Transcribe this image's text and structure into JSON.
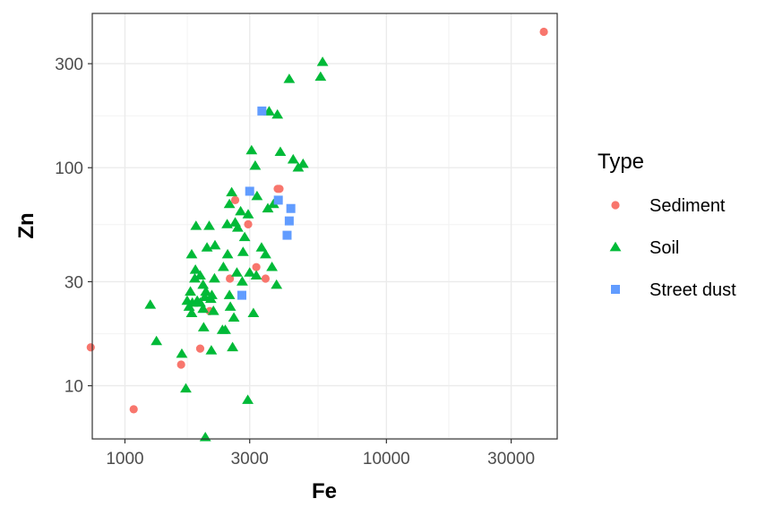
{
  "chart_data": {
    "type": "scatter",
    "xlabel": "Fe",
    "ylabel": "Zn",
    "x_scale": "log",
    "y_scale": "log",
    "xlim": [
      750,
      45000
    ],
    "ylim": [
      5.7,
      510
    ],
    "x_ticks": [
      1000,
      3000,
      10000,
      30000
    ],
    "x_tick_labels": [
      "1000",
      "3000",
      "10000",
      "30000"
    ],
    "y_ticks": [
      10,
      30,
      100,
      300
    ],
    "y_tick_labels": [
      "10",
      "30",
      "100",
      "300"
    ],
    "x_minor_ticks": [
      1732,
      5477,
      17321
    ],
    "y_minor_ticks": [
      5.77,
      17.3,
      54.8,
      173
    ],
    "grid": true,
    "legend": {
      "title": "Type",
      "placement": "right",
      "entries": [
        "Sediment",
        "Soil",
        "Street dust"
      ]
    },
    "colors": {
      "Sediment": "#F8766D",
      "Soil": "#00BA38",
      "Street dust": "#619CFF"
    },
    "series": [
      {
        "name": "Sediment",
        "marker": "circle",
        "points": [
          [
            40000,
            420
          ],
          [
            740,
            15
          ],
          [
            1080,
            7.8
          ],
          [
            1640,
            12.5
          ],
          [
            1940,
            14.8
          ],
          [
            2110,
            22
          ],
          [
            2520,
            31
          ],
          [
            2640,
            71
          ],
          [
            2960,
            55
          ],
          [
            3180,
            35
          ],
          [
            3450,
            31
          ],
          [
            3840,
            80
          ],
          [
            3900,
            80
          ]
        ]
      },
      {
        "name": "Soil",
        "marker": "triangle",
        "points": [
          [
            5700,
            305
          ],
          [
            5600,
            261
          ],
          [
            4250,
            255
          ],
          [
            3560,
            181
          ],
          [
            3830,
            175
          ],
          [
            3050,
            120
          ],
          [
            3930,
            118
          ],
          [
            4400,
            109
          ],
          [
            3150,
            102
          ],
          [
            4800,
            104
          ],
          [
            4600,
            100
          ],
          [
            2560,
            77
          ],
          [
            3200,
            74
          ],
          [
            2510,
            68
          ],
          [
            3700,
            68
          ],
          [
            3520,
            65
          ],
          [
            2770,
            63
          ],
          [
            2960,
            61
          ],
          [
            2100,
            54
          ],
          [
            2460,
            55
          ],
          [
            2640,
            56
          ],
          [
            1870,
            54
          ],
          [
            2700,
            53
          ],
          [
            2870,
            48
          ],
          [
            2210,
            44
          ],
          [
            2060,
            43
          ],
          [
            2470,
            40
          ],
          [
            2830,
            41
          ],
          [
            3330,
            43
          ],
          [
            1800,
            40
          ],
          [
            3450,
            40
          ],
          [
            3650,
            35
          ],
          [
            2380,
            35
          ],
          [
            3000,
            33
          ],
          [
            2680,
            33
          ],
          [
            1860,
            34
          ],
          [
            1940,
            32
          ],
          [
            3180,
            32
          ],
          [
            1850,
            31
          ],
          [
            2200,
            31
          ],
          [
            2810,
            30
          ],
          [
            1990,
            29
          ],
          [
            3800,
            29
          ],
          [
            1780,
            27
          ],
          [
            2510,
            26
          ],
          [
            2150,
            26
          ],
          [
            2040,
            27
          ],
          [
            2020,
            25.5
          ],
          [
            2130,
            25
          ],
          [
            1890,
            24.5
          ],
          [
            1730,
            24.5
          ],
          [
            1810,
            24
          ],
          [
            1940,
            24
          ],
          [
            1760,
            23
          ],
          [
            2530,
            23
          ],
          [
            1990,
            22.5
          ],
          [
            1250,
            23.5
          ],
          [
            2180,
            22
          ],
          [
            1800,
            21.5
          ],
          [
            3100,
            21.5
          ],
          [
            2610,
            20.5
          ],
          [
            2000,
            18.5
          ],
          [
            2420,
            18
          ],
          [
            2360,
            18
          ],
          [
            1320,
            16
          ],
          [
            2580,
            15
          ],
          [
            2140,
            14.5
          ],
          [
            1650,
            14
          ],
          [
            1710,
            9.7
          ],
          [
            2950,
            8.6
          ],
          [
            2030,
            5.8
          ]
        ]
      },
      {
        "name": "Street dust",
        "marker": "square",
        "points": [
          [
            3340,
            182
          ],
          [
            3000,
            78
          ],
          [
            3860,
            71
          ],
          [
            4310,
            65
          ],
          [
            4250,
            57
          ],
          [
            4170,
            49
          ],
          [
            2800,
            26
          ]
        ]
      }
    ]
  }
}
